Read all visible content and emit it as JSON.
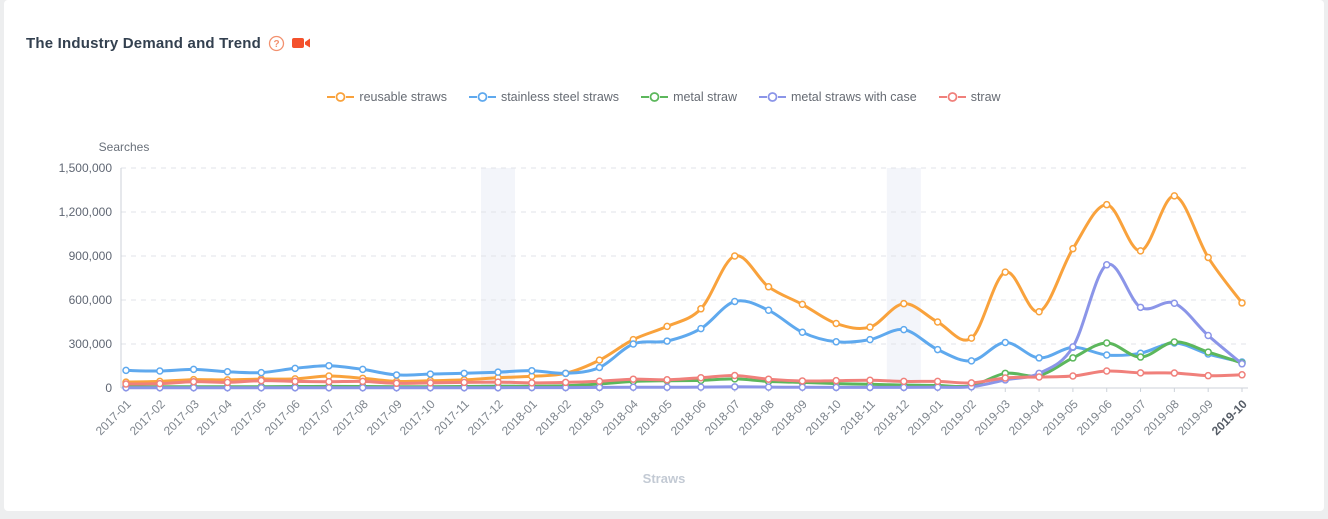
{
  "page": {
    "title": "The Industry Demand and Trend"
  },
  "header": {
    "icons": [
      {
        "name": "help-icon",
        "glyph": "?",
        "color": "#f2916f"
      },
      {
        "name": "video-icon",
        "glyph": "video-camera",
        "color": "#f4512c"
      }
    ]
  },
  "chart_data": {
    "type": "line",
    "title": "",
    "ylabel": "Searches",
    "xlabel": "Straws",
    "ylim": [
      0,
      1500000
    ],
    "yticks": [
      0,
      300000,
      600000,
      900000,
      1200000,
      1500000
    ],
    "ytick_labels": [
      "0",
      "300,000",
      "600,000",
      "900,000",
      "1,200,000",
      "1,500,000"
    ],
    "grid": "horizontal-dashed",
    "legend_position": "top-center",
    "smooth": true,
    "highlight_bands": {
      "months": [
        "2017-12",
        "2018-12"
      ],
      "color": "#f3f5fa"
    },
    "categories": [
      "2017-01",
      "2017-02",
      "2017-03",
      "2017-04",
      "2017-05",
      "2017-06",
      "2017-07",
      "2017-08",
      "2017-09",
      "2017-10",
      "2017-11",
      "2017-12",
      "2018-01",
      "2018-02",
      "2018-03",
      "2018-04",
      "2018-05",
      "2018-06",
      "2018-07",
      "2018-08",
      "2018-09",
      "2018-10",
      "2018-11",
      "2018-12",
      "2019-01",
      "2019-02",
      "2019-03",
      "2019-04",
      "2019-05",
      "2019-06",
      "2019-07",
      "2019-08",
      "2019-09",
      "2019-10"
    ],
    "series": [
      {
        "name": "reusable straws",
        "color": "#f9a23c",
        "values": [
          40000,
          45000,
          57000,
          55000,
          61000,
          62000,
          82000,
          66000,
          45000,
          50000,
          55000,
          70000,
          80000,
          100000,
          190000,
          330000,
          420000,
          540000,
          900000,
          690000,
          570000,
          440000,
          415000,
          575000,
          450000,
          340000,
          790000,
          520000,
          950000,
          1250000,
          935000,
          1310000,
          890000,
          580000
        ]
      },
      {
        "name": "stainless steel straws",
        "color": "#5fa9ee",
        "values": [
          120000,
          116000,
          127000,
          111000,
          105000,
          134000,
          152000,
          127000,
          89000,
          95000,
          100000,
          108000,
          118000,
          100000,
          140000,
          300000,
          320000,
          405000,
          590000,
          530000,
          380000,
          315000,
          330000,
          398000,
          262000,
          185000,
          310000,
          205000,
          277000,
          225000,
          237000,
          307000,
          232000,
          177000
        ]
      },
      {
        "name": "metal straw",
        "color": "#5cb75c",
        "values": [
          8000,
          8000,
          9000,
          9000,
          9000,
          10000,
          11000,
          10000,
          9000,
          9000,
          10000,
          12000,
          12000,
          15000,
          27000,
          45000,
          50000,
          52000,
          62000,
          45000,
          38000,
          30000,
          25000,
          20000,
          17000,
          15000,
          100000,
          85000,
          205000,
          307000,
          211000,
          314000,
          245000,
          170000
        ]
      },
      {
        "name": "metal straws with case",
        "color": "#8b95e8",
        "values": [
          2000,
          2000,
          2000,
          2000,
          2000,
          2000,
          2000,
          2000,
          2000,
          2000,
          2000,
          2000,
          3000,
          3000,
          4000,
          5000,
          5000,
          6000,
          8000,
          6000,
          5000,
          4000,
          4000,
          4000,
          5000,
          8000,
          55000,
          100000,
          280000,
          840000,
          550000,
          578000,
          358000,
          165000
        ]
      },
      {
        "name": "straw",
        "color": "#f0807b",
        "values": [
          27000,
          30000,
          43000,
          38000,
          50000,
          45000,
          43000,
          45000,
          32000,
          35000,
          38000,
          40000,
          35000,
          38000,
          46000,
          60000,
          56000,
          70000,
          85000,
          60000,
          48000,
          50000,
          53000,
          45000,
          45000,
          35000,
          68000,
          75000,
          82000,
          116000,
          103000,
          102000,
          84000,
          90000
        ]
      }
    ],
    "axis_color": "#ccd2d9",
    "gridline_color": "#e0e3e8"
  }
}
